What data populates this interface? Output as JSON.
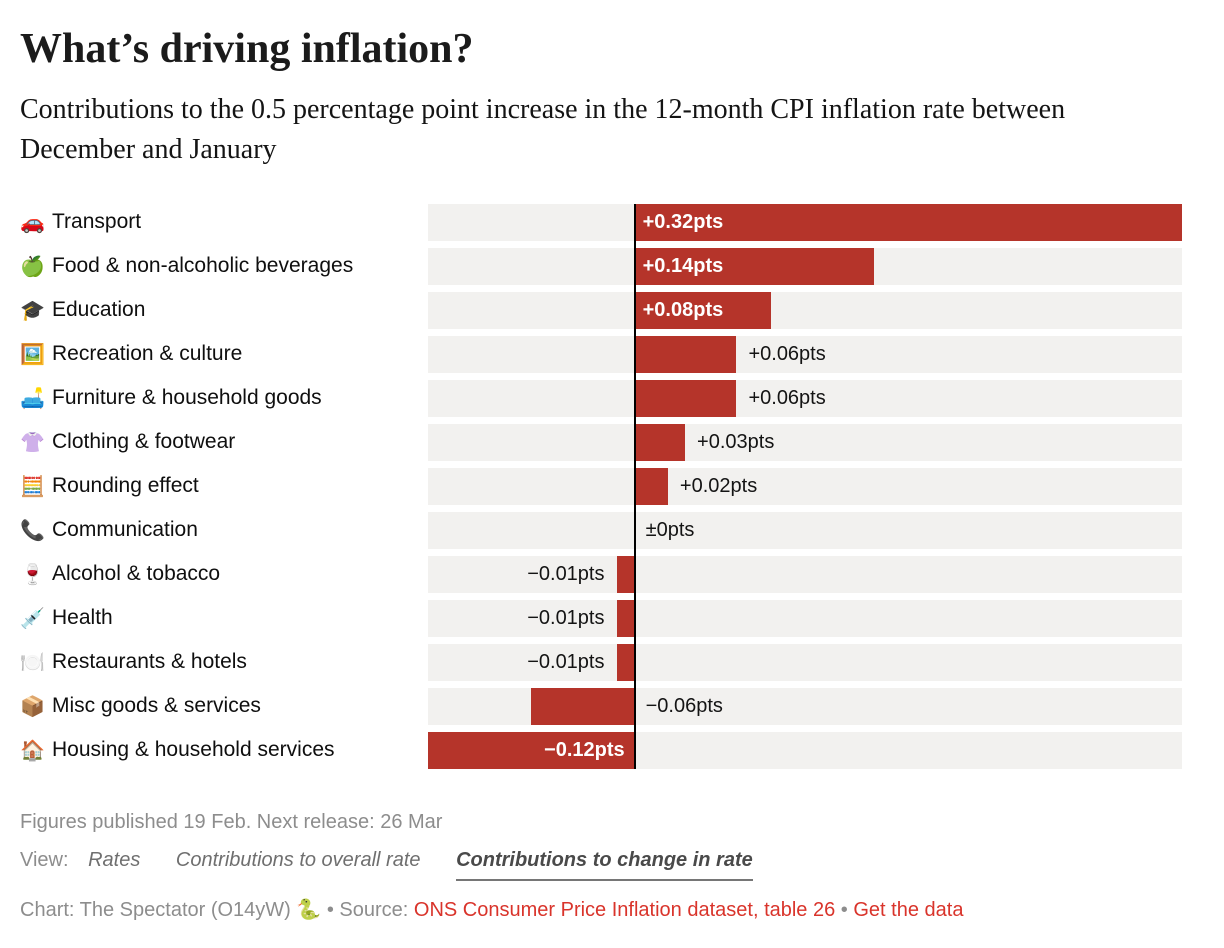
{
  "header": {
    "title": "What’s driving inflation?",
    "subtitle": "Contributions to the 0.5 percentage point increase in the 12-month CPI inflation rate between December and January"
  },
  "chart_data": {
    "type": "bar",
    "orientation": "horizontal",
    "unit": "pts",
    "title": "What’s driving inflation?",
    "axis": {
      "min": -0.12,
      "max": 0.32
    },
    "bar_color": "#b5342a",
    "track_color": "#f2f1ef",
    "categories": [
      "Transport",
      "Food & non-alcoholic beverages",
      "Education",
      "Recreation & culture",
      "Furniture & household goods",
      "Clothing & footwear",
      "Rounding effect",
      "Communication",
      "Alcohol & tobacco",
      "Health",
      "Restaurants & hotels",
      "Misc goods & services",
      "Housing & household services"
    ],
    "values": [
      0.32,
      0.14,
      0.08,
      0.06,
      0.06,
      0.03,
      0.02,
      0,
      -0.01,
      -0.01,
      -0.01,
      -0.06,
      -0.12
    ],
    "rows": [
      {
        "icon": "🚗",
        "icon_name": "car-icon",
        "label": "Transport",
        "value": 0.32,
        "value_label": "+0.32pts",
        "placement": "inside"
      },
      {
        "icon": "🍏",
        "icon_name": "green-apple-icon",
        "label": "Food & non-alcoholic beverages",
        "value": 0.14,
        "value_label": "+0.14pts",
        "placement": "inside"
      },
      {
        "icon": "🎓",
        "icon_name": "graduation-cap-icon",
        "label": "Education",
        "value": 0.08,
        "value_label": "+0.08pts",
        "placement": "inside"
      },
      {
        "icon": "🖼️",
        "icon_name": "framed-picture-icon",
        "label": "Recreation & culture",
        "value": 0.06,
        "value_label": "+0.06pts",
        "placement": "beyond"
      },
      {
        "icon": "🛋️",
        "icon_name": "couch-icon",
        "label": "Furniture & household goods",
        "value": 0.06,
        "value_label": "+0.06pts",
        "placement": "beyond"
      },
      {
        "icon": "👚",
        "icon_name": "clothing-icon",
        "label": "Clothing & footwear",
        "value": 0.03,
        "value_label": "+0.03pts",
        "placement": "beyond"
      },
      {
        "icon": "🧮",
        "icon_name": "abacus-icon",
        "label": "Rounding effect",
        "value": 0.02,
        "value_label": "+0.02pts",
        "placement": "beyond"
      },
      {
        "icon": "📞",
        "icon_name": "telephone-icon",
        "label": "Communication",
        "value": 0,
        "value_label": "±0pts",
        "placement": "zero-right"
      },
      {
        "icon": "🍷",
        "icon_name": "wine-glass-icon",
        "label": "Alcohol & tobacco",
        "value": -0.01,
        "value_label": "−0.01pts",
        "placement": "beyond"
      },
      {
        "icon": "💉",
        "icon_name": "syringe-icon",
        "label": "Health",
        "value": -0.01,
        "value_label": "−0.01pts",
        "placement": "beyond"
      },
      {
        "icon": "🍽️",
        "icon_name": "plate-cutlery-icon",
        "label": "Restaurants & hotels",
        "value": -0.01,
        "value_label": "−0.01pts",
        "placement": "beyond"
      },
      {
        "icon": "📦",
        "icon_name": "package-icon",
        "label": "Misc goods & services",
        "value": -0.06,
        "value_label": "−0.06pts",
        "placement": "zero-right"
      },
      {
        "icon": "🏠",
        "icon_name": "house-icon",
        "label": "Housing & household services",
        "value": -0.12,
        "value_label": "−0.12pts",
        "placement": "inside"
      }
    ]
  },
  "footer": {
    "published": "Figures published 19 Feb. Next release: 26 Mar",
    "view_label": "View:",
    "view_options": [
      {
        "label": "Rates",
        "selected": false
      },
      {
        "label": "Contributions to overall rate",
        "selected": false
      },
      {
        "label": "Contributions to change in rate",
        "selected": true
      }
    ],
    "credit_prefix": "Chart: The Spectator (O14yW) 🐍 • Source: ",
    "source_link": "ONS Consumer Price Inflation dataset, table 26",
    "separator": " • ",
    "data_link": "Get the data",
    "link_color": "#d9342b"
  }
}
